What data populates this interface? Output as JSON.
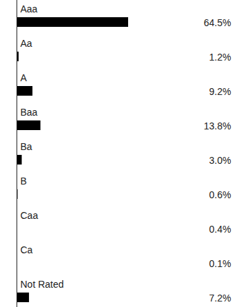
{
  "chart_data": {
    "type": "bar",
    "orientation": "horizontal",
    "categories": [
      "Aaa",
      "Aa",
      "A",
      "Baa",
      "Ba",
      "B",
      "Caa",
      "Ca",
      "Not Rated"
    ],
    "values": [
      64.5,
      1.2,
      9.2,
      13.8,
      3.0,
      0.6,
      0.4,
      0.1,
      7.2
    ],
    "value_labels": [
      "64.5%",
      "1.2%",
      "9.2%",
      "13.8%",
      "3.0%",
      "0.6%",
      "0.4%",
      "0.1%",
      "7.2%"
    ],
    "color": "#000000",
    "data_labels": true,
    "tick_labels": false,
    "grid": false
  }
}
